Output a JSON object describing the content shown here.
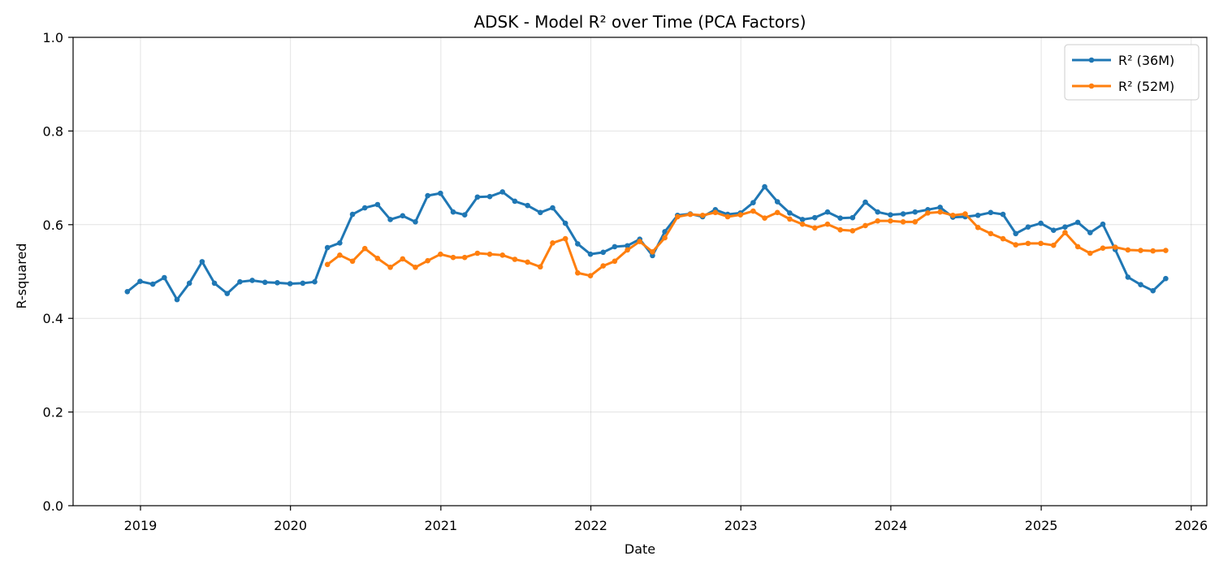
{
  "chart_data": {
    "type": "line",
    "title": "ADSK - Model R² over Time (PCA Factors)",
    "xlabel": "Date",
    "ylabel": "R-squared",
    "xlim": [
      "2018-07-21",
      "2026-02-08"
    ],
    "ylim": [
      0,
      1
    ],
    "x_ticks": [
      "2019",
      "2020",
      "2021",
      "2022",
      "2023",
      "2024",
      "2025",
      "2026"
    ],
    "y_ticks": [
      "0.0",
      "0.2",
      "0.4",
      "0.6",
      "0.8",
      "1.0"
    ],
    "grid": true,
    "legend_position": "top-right",
    "series": [
      {
        "name": "R² (36M)",
        "color": "#1f77b4",
        "points": [
          [
            "2018-11-30",
            0.457
          ],
          [
            "2018-12-31",
            0.479
          ],
          [
            "2019-01-31",
            0.473
          ],
          [
            "2019-02-28",
            0.487
          ],
          [
            "2019-03-31",
            0.44
          ],
          [
            "2019-04-30",
            0.475
          ],
          [
            "2019-05-31",
            0.521
          ],
          [
            "2019-06-30",
            0.475
          ],
          [
            "2019-07-31",
            0.453
          ],
          [
            "2019-08-31",
            0.478
          ],
          [
            "2019-09-30",
            0.481
          ],
          [
            "2019-10-31",
            0.477
          ],
          [
            "2019-11-30",
            0.476
          ],
          [
            "2019-12-31",
            0.474
          ],
          [
            "2020-01-31",
            0.475
          ],
          [
            "2020-02-29",
            0.478
          ],
          [
            "2020-03-31",
            0.551
          ],
          [
            "2020-04-30",
            0.561
          ],
          [
            "2020-05-31",
            0.622
          ],
          [
            "2020-06-30",
            0.636
          ],
          [
            "2020-07-31",
            0.643
          ],
          [
            "2020-08-31",
            0.611
          ],
          [
            "2020-09-30",
            0.619
          ],
          [
            "2020-10-31",
            0.606
          ],
          [
            "2020-11-30",
            0.662
          ],
          [
            "2020-12-31",
            0.667
          ],
          [
            "2021-01-31",
            0.627
          ],
          [
            "2021-02-28",
            0.621
          ],
          [
            "2021-03-31",
            0.659
          ],
          [
            "2021-04-30",
            0.66
          ],
          [
            "2021-05-31",
            0.67
          ],
          [
            "2021-06-30",
            0.65
          ],
          [
            "2021-07-31",
            0.641
          ],
          [
            "2021-08-31",
            0.626
          ],
          [
            "2021-09-30",
            0.636
          ],
          [
            "2021-10-31",
            0.603
          ],
          [
            "2021-11-30",
            0.559
          ],
          [
            "2021-12-31",
            0.537
          ],
          [
            "2022-01-31",
            0.541
          ],
          [
            "2022-02-28",
            0.553
          ],
          [
            "2022-03-31",
            0.555
          ],
          [
            "2022-04-30",
            0.569
          ],
          [
            "2022-05-31",
            0.534
          ],
          [
            "2022-06-30",
            0.585
          ],
          [
            "2022-07-31",
            0.62
          ],
          [
            "2022-08-31",
            0.623
          ],
          [
            "2022-09-30",
            0.617
          ],
          [
            "2022-10-31",
            0.632
          ],
          [
            "2022-11-30",
            0.622
          ],
          [
            "2022-12-31",
            0.625
          ],
          [
            "2023-01-31",
            0.647
          ],
          [
            "2023-02-28",
            0.681
          ],
          [
            "2023-03-31",
            0.649
          ],
          [
            "2023-04-30",
            0.625
          ],
          [
            "2023-05-31",
            0.611
          ],
          [
            "2023-06-30",
            0.615
          ],
          [
            "2023-07-31",
            0.627
          ],
          [
            "2023-08-31",
            0.614
          ],
          [
            "2023-09-30",
            0.615
          ],
          [
            "2023-10-31",
            0.648
          ],
          [
            "2023-11-30",
            0.627
          ],
          [
            "2023-12-31",
            0.621
          ],
          [
            "2024-01-31",
            0.623
          ],
          [
            "2024-02-29",
            0.627
          ],
          [
            "2024-03-31",
            0.632
          ],
          [
            "2024-04-30",
            0.637
          ],
          [
            "2024-05-31",
            0.616
          ],
          [
            "2024-06-30",
            0.617
          ],
          [
            "2024-07-31",
            0.62
          ],
          [
            "2024-08-31",
            0.626
          ],
          [
            "2024-09-30",
            0.622
          ],
          [
            "2024-10-31",
            0.581
          ],
          [
            "2024-11-30",
            0.595
          ],
          [
            "2024-12-31",
            0.603
          ],
          [
            "2025-01-31",
            0.588
          ],
          [
            "2025-02-28",
            0.595
          ],
          [
            "2025-03-31",
            0.605
          ],
          [
            "2025-04-30",
            0.583
          ],
          [
            "2025-05-31",
            0.601
          ],
          [
            "2025-06-30",
            0.547
          ],
          [
            "2025-07-31",
            0.488
          ],
          [
            "2025-08-31",
            0.472
          ],
          [
            "2025-09-30",
            0.459
          ],
          [
            "2025-10-31",
            0.485
          ]
        ]
      },
      {
        "name": "R² (52M)",
        "color": "#ff7f0e",
        "points": [
          [
            "2020-03-31",
            0.515
          ],
          [
            "2020-04-30",
            0.535
          ],
          [
            "2020-05-31",
            0.522
          ],
          [
            "2020-06-30",
            0.549
          ],
          [
            "2020-07-31",
            0.528
          ],
          [
            "2020-08-31",
            0.509
          ],
          [
            "2020-09-30",
            0.527
          ],
          [
            "2020-10-31",
            0.509
          ],
          [
            "2020-11-30",
            0.523
          ],
          [
            "2020-12-31",
            0.537
          ],
          [
            "2021-01-31",
            0.53
          ],
          [
            "2021-02-28",
            0.53
          ],
          [
            "2021-03-31",
            0.539
          ],
          [
            "2021-04-30",
            0.537
          ],
          [
            "2021-05-31",
            0.535
          ],
          [
            "2021-06-30",
            0.526
          ],
          [
            "2021-07-31",
            0.52
          ],
          [
            "2021-08-31",
            0.51
          ],
          [
            "2021-09-30",
            0.561
          ],
          [
            "2021-10-31",
            0.57
          ],
          [
            "2021-11-30",
            0.497
          ],
          [
            "2021-12-31",
            0.491
          ],
          [
            "2022-01-31",
            0.512
          ],
          [
            "2022-02-28",
            0.522
          ],
          [
            "2022-03-31",
            0.546
          ],
          [
            "2022-04-30",
            0.564
          ],
          [
            "2022-05-31",
            0.542
          ],
          [
            "2022-06-30",
            0.572
          ],
          [
            "2022-07-31",
            0.617
          ],
          [
            "2022-08-31",
            0.622
          ],
          [
            "2022-09-30",
            0.62
          ],
          [
            "2022-10-31",
            0.626
          ],
          [
            "2022-11-30",
            0.617
          ],
          [
            "2022-12-31",
            0.621
          ],
          [
            "2023-01-31",
            0.629
          ],
          [
            "2023-02-28",
            0.614
          ],
          [
            "2023-03-31",
            0.626
          ],
          [
            "2023-04-30",
            0.612
          ],
          [
            "2023-05-31",
            0.601
          ],
          [
            "2023-06-30",
            0.593
          ],
          [
            "2023-07-31",
            0.601
          ],
          [
            "2023-08-31",
            0.589
          ],
          [
            "2023-09-30",
            0.587
          ],
          [
            "2023-10-31",
            0.598
          ],
          [
            "2023-11-30",
            0.608
          ],
          [
            "2023-12-31",
            0.608
          ],
          [
            "2024-01-31",
            0.606
          ],
          [
            "2024-02-29",
            0.606
          ],
          [
            "2024-03-31",
            0.625
          ],
          [
            "2024-04-30",
            0.627
          ],
          [
            "2024-05-31",
            0.62
          ],
          [
            "2024-06-30",
            0.623
          ],
          [
            "2024-07-31",
            0.594
          ],
          [
            "2024-08-31",
            0.581
          ],
          [
            "2024-09-30",
            0.57
          ],
          [
            "2024-10-31",
            0.557
          ],
          [
            "2024-11-30",
            0.56
          ],
          [
            "2024-12-31",
            0.56
          ],
          [
            "2025-01-31",
            0.556
          ],
          [
            "2025-02-28",
            0.583
          ],
          [
            "2025-03-31",
            0.553
          ],
          [
            "2025-04-30",
            0.539
          ],
          [
            "2025-05-31",
            0.55
          ],
          [
            "2025-06-30",
            0.552
          ],
          [
            "2025-07-31",
            0.546
          ],
          [
            "2025-08-31",
            0.545
          ],
          [
            "2025-09-30",
            0.544
          ],
          [
            "2025-10-31",
            0.545
          ]
        ]
      }
    ]
  }
}
